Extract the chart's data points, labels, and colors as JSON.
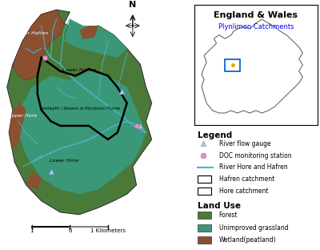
{
  "title_inset": "England & Wales",
  "subtitle_inset": "Plynlimon Catchments",
  "subtitle_color": "#0000CC",
  "bg_color": "white",
  "legend_title": "Legend",
  "legend_items": [
    {
      "label": "River flow gauge",
      "type": "triangle",
      "color": "#b8cfe8"
    },
    {
      "label": "DOC monitoring station",
      "type": "circle",
      "color": "#d899c8"
    },
    {
      "label": "River Hore and Hafren",
      "type": "line",
      "color": "#4ab8d0"
    },
    {
      "label": "Hafren catchment",
      "type": "rect",
      "facecolor": "white",
      "edgecolor": "black"
    },
    {
      "label": "Hore catchment",
      "type": "rect",
      "facecolor": "white",
      "edgecolor": "black"
    }
  ],
  "landuse_title": "Land Use",
  "landuse_items": [
    {
      "label": "Forest",
      "color": "#4a7a3a"
    },
    {
      "label": "Unimproved grassland",
      "color": "#3a9878"
    },
    {
      "label": "Wetland(peatland)",
      "color": "#8b5030"
    }
  ],
  "forest_color": "#4a7a3a",
  "grassland_color": "#3a9878",
  "peatland_color": "#8b5030",
  "river_color": "#4ab8d0",
  "boundary_color": "black"
}
